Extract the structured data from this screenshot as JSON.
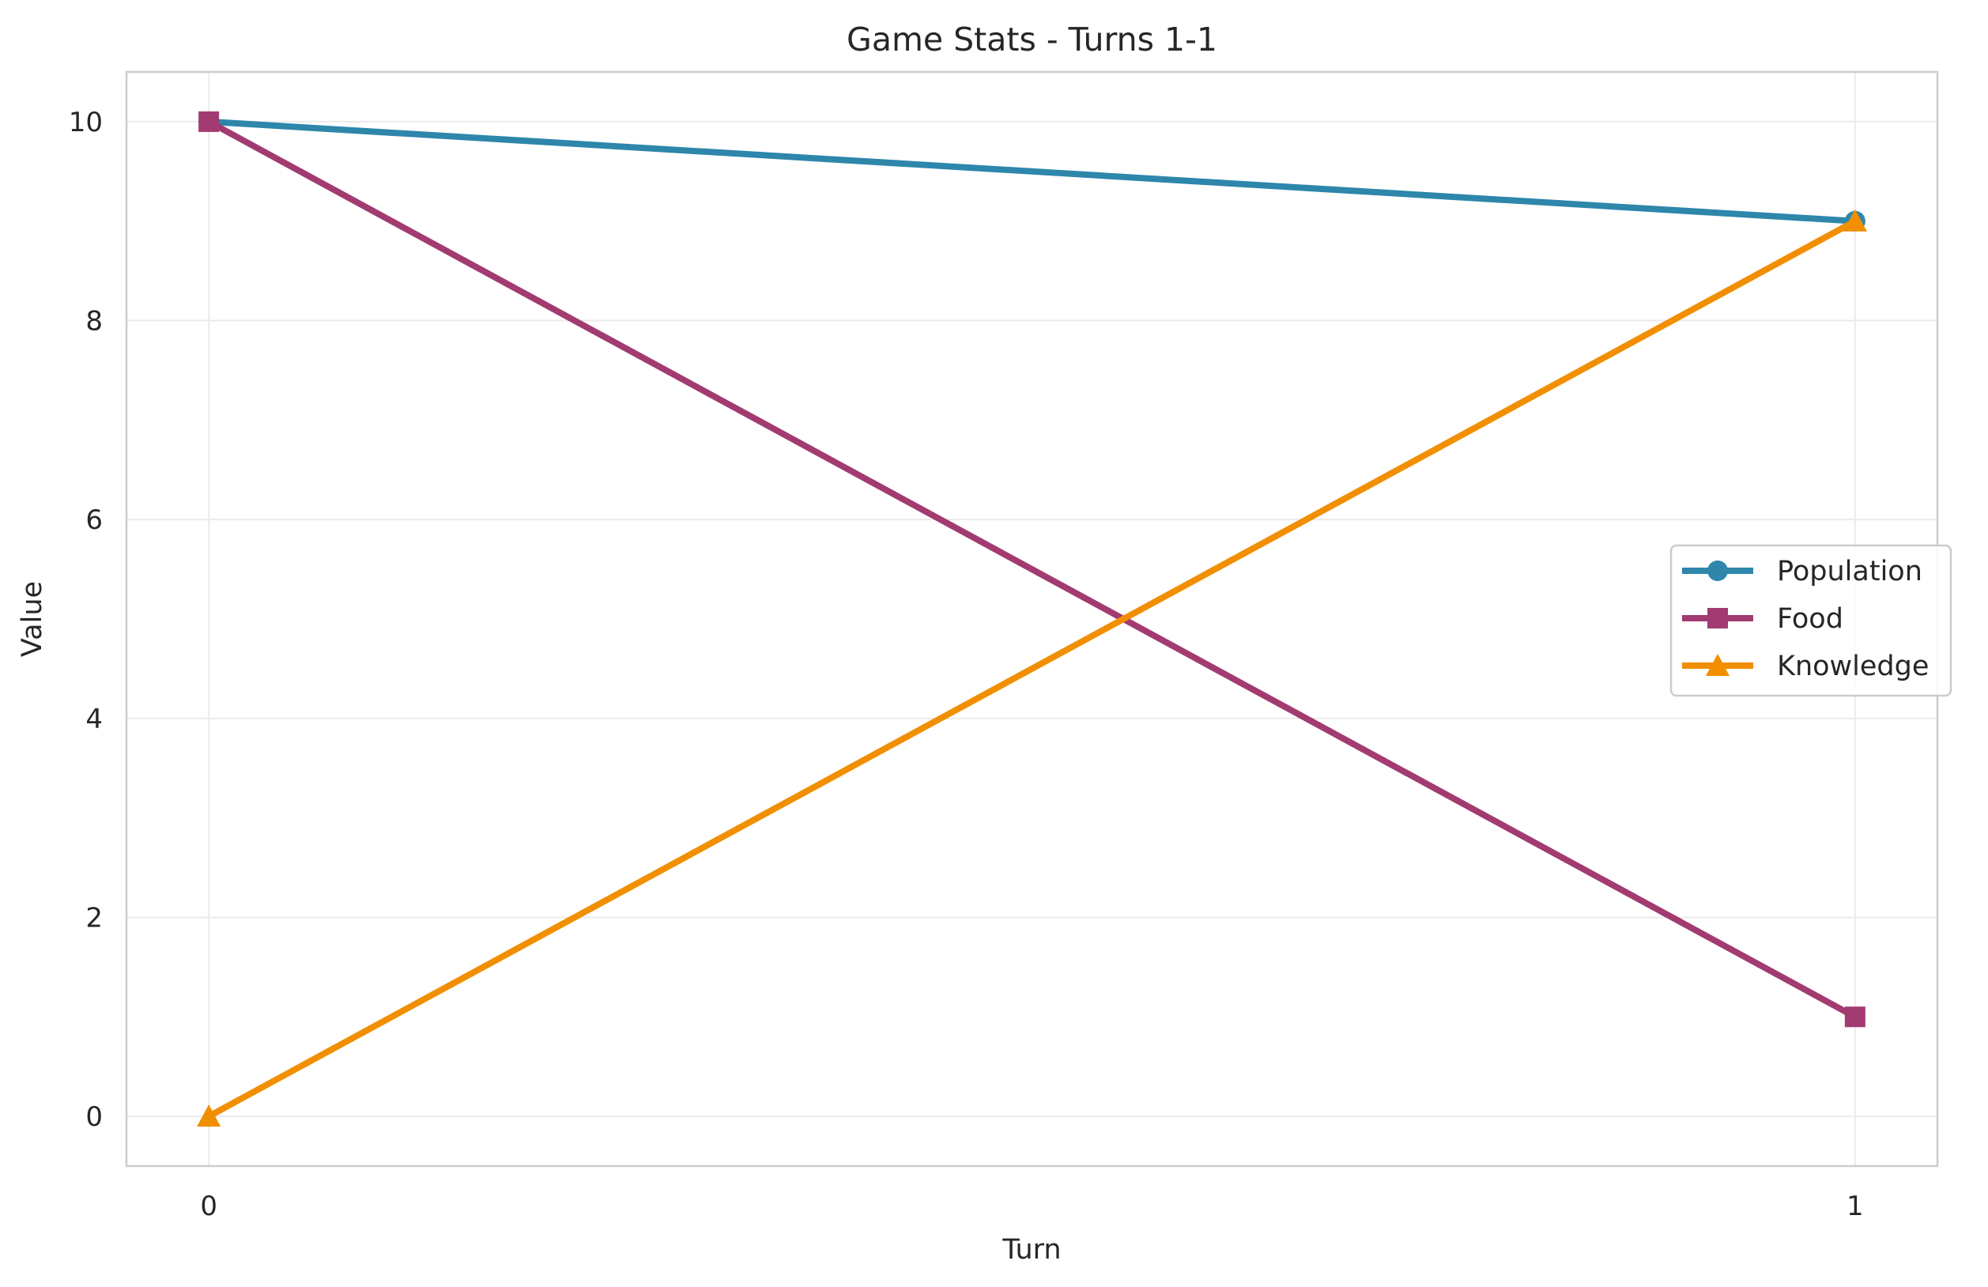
{
  "chart_data": {
    "type": "line",
    "title": "Game Stats - Turns 1-1",
    "xlabel": "Turn",
    "ylabel": "Value",
    "x": [
      0,
      1
    ],
    "xticks": [
      "0",
      "1"
    ],
    "xlim": [
      -0.05,
      1.05
    ],
    "ylim": [
      -0.5,
      10.5
    ],
    "yticks": [
      "0",
      "2",
      "4",
      "6",
      "8",
      "10"
    ],
    "grid": true,
    "legend_position": "center-right",
    "series": [
      {
        "name": "Population",
        "values": [
          10,
          9
        ],
        "color": "#2e86ab",
        "marker": "circle"
      },
      {
        "name": "Food",
        "values": [
          10,
          1
        ],
        "color": "#a23b72",
        "marker": "square"
      },
      {
        "name": "Knowledge",
        "values": [
          0,
          9
        ],
        "color": "#f18f01",
        "marker": "triangle"
      }
    ]
  }
}
